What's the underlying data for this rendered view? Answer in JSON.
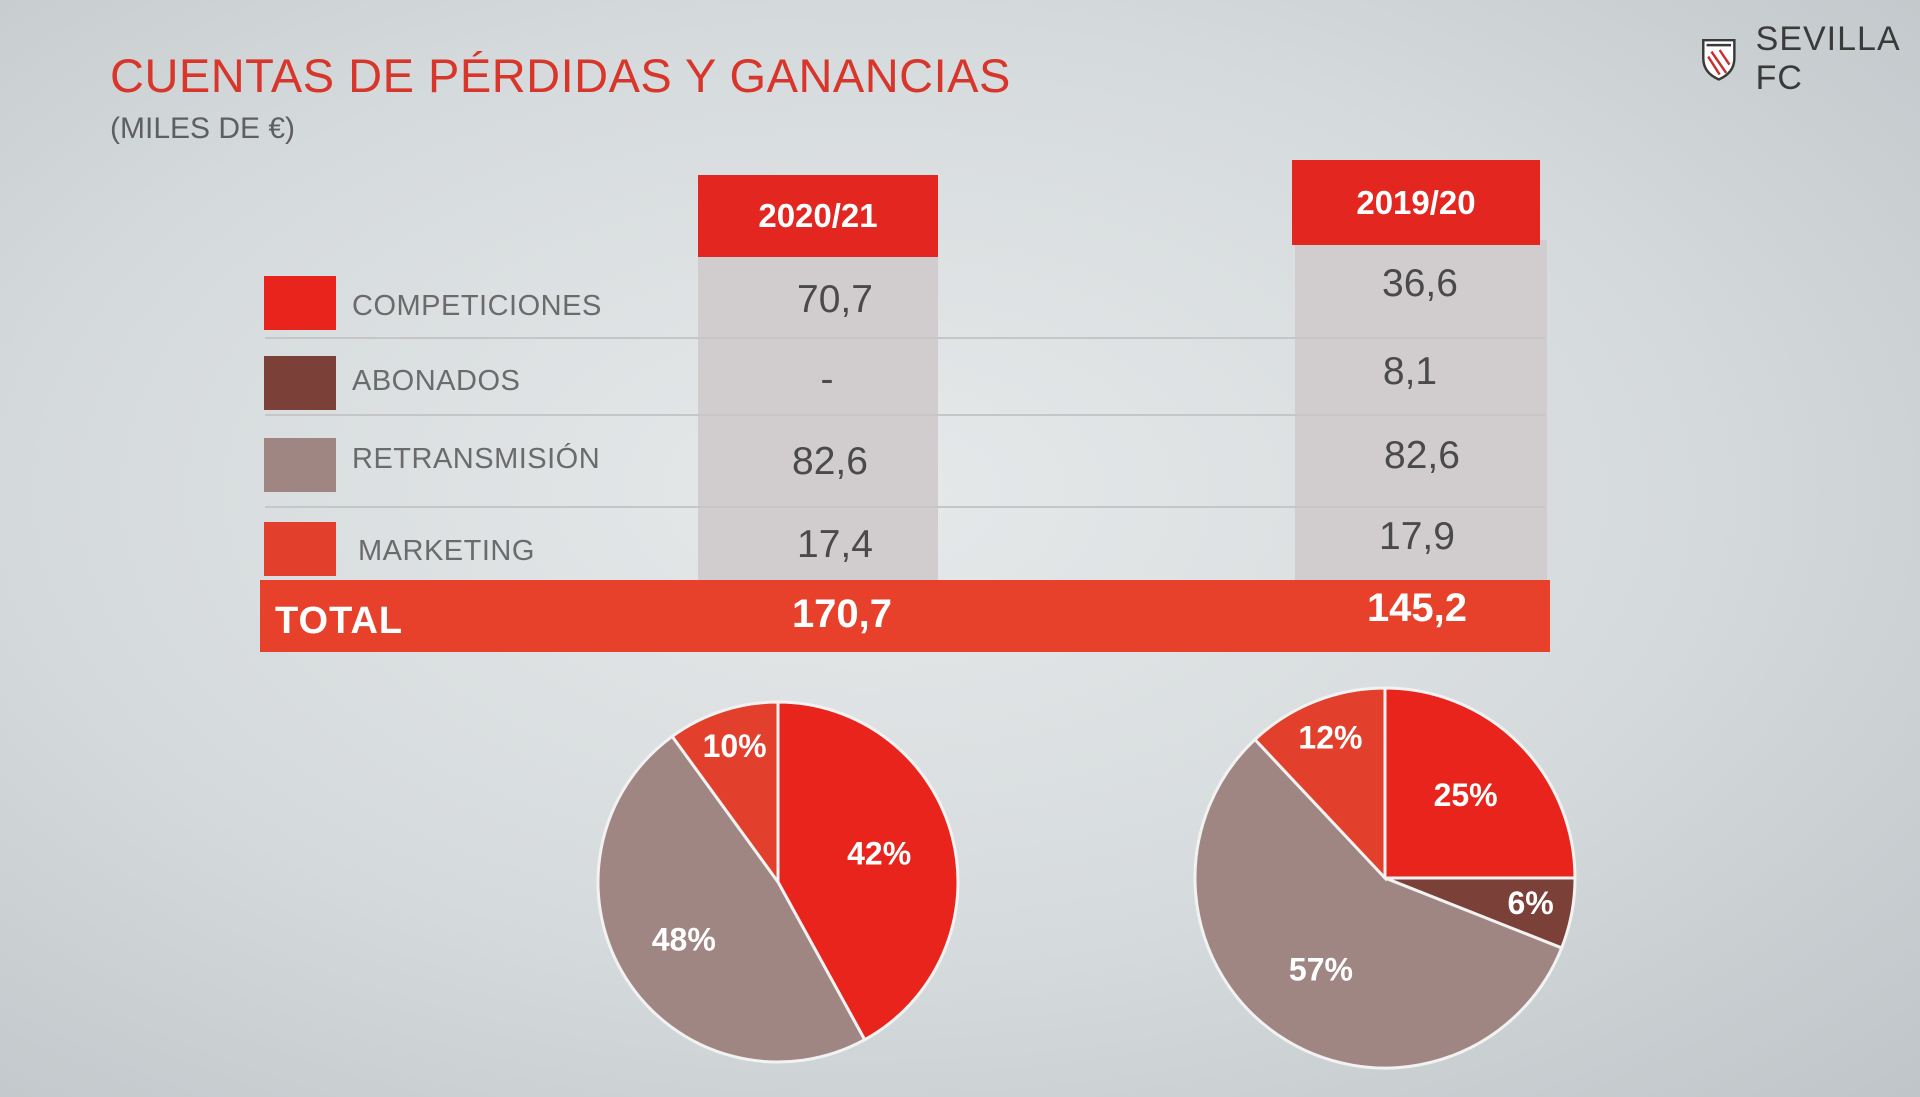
{
  "page": {
    "title": "CUENTAS DE PÉRDIDAS Y GANANCIAS",
    "subtitle": "(MILES DE €)",
    "logo_text": "SEVILLA FC"
  },
  "colors": {
    "competiciones": "#e8241d",
    "abonados": "#7b4038",
    "retransmision": "#a08683",
    "marketing": "#e2402d",
    "header": "#e3261f",
    "total": "#e8412b",
    "title": "#d8352b"
  },
  "table": {
    "columns": [
      "2020/21",
      "2019/20"
    ],
    "rows": [
      {
        "label": "COMPETICIONES",
        "values": [
          "70,7",
          "36,6"
        ]
      },
      {
        "label": "ABONADOS",
        "values": [
          "-",
          "8,1"
        ]
      },
      {
        "label": "RETRANSMISIÓN",
        "values": [
          "82,6",
          "82,6"
        ]
      },
      {
        "label": "MARKETING",
        "values": [
          "17,4",
          "17,9"
        ]
      }
    ],
    "total": {
      "label": "TOTAL",
      "values": [
        "170,7",
        "145,2"
      ]
    }
  },
  "chart_data": [
    {
      "type": "pie",
      "title": "",
      "slices": [
        {
          "label": "COMPETICIONES",
          "value": 42,
          "text": "42%"
        },
        {
          "label": "RETRANSMISIÓN",
          "value": 48,
          "text": "48%"
        },
        {
          "label": "MARKETING",
          "value": 10,
          "text": "10%"
        }
      ]
    },
    {
      "type": "pie",
      "title": "",
      "slices": [
        {
          "label": "COMPETICIONES",
          "value": 25,
          "text": "25%"
        },
        {
          "label": "ABONADOS",
          "value": 6,
          "text": "6%"
        },
        {
          "label": "RETRANSMISIÓN",
          "value": 57,
          "text": "57%"
        },
        {
          "label": "MARKETING",
          "value": 12,
          "text": "12%"
        }
      ]
    }
  ]
}
